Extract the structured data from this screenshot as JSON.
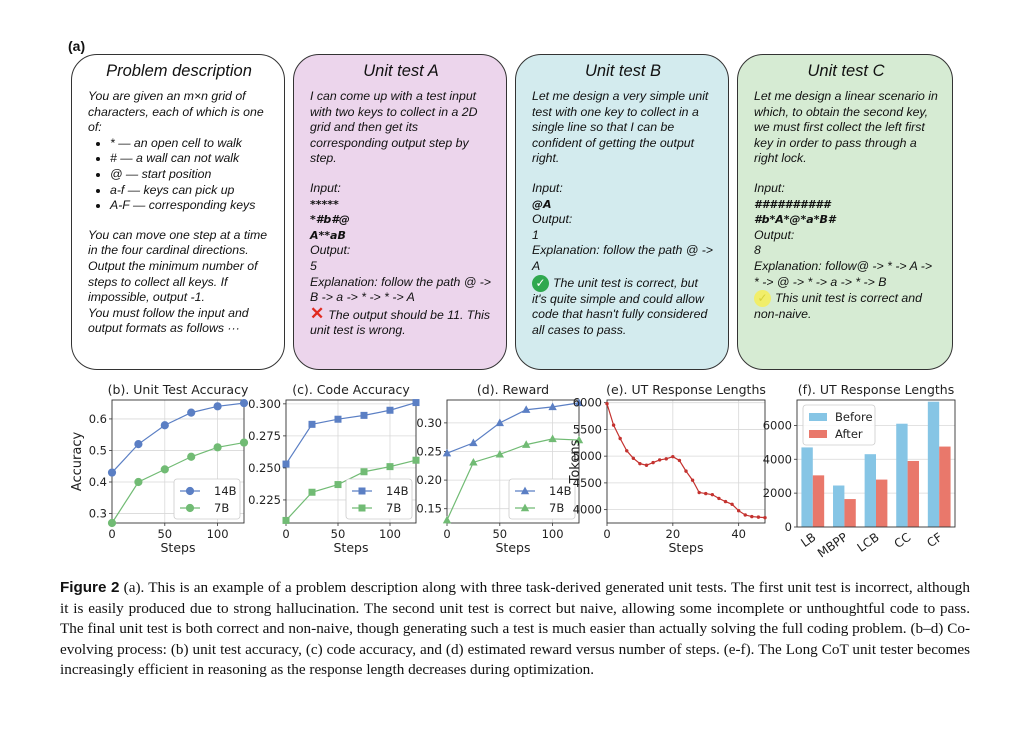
{
  "panel_label": "(a)",
  "boxes": {
    "problem": {
      "title": "Problem description",
      "intro": "You are given an m×n grid of characters, each of which is one of:",
      "items": [
        "* — an open cell to walk",
        "# — a wall can not walk",
        "@ — start position",
        "a-f — keys can pick up",
        "A-F — corresponding keys"
      ],
      "rules": "You can move one step at a time in the four cardinal directions. Output the minimum number of steps to collect all keys. If impossible, output -1.",
      "format": "You must follow the input and output formats as follows ···",
      "bg": "#ffffff"
    },
    "a": {
      "title": "Unit test A",
      "intro": "I can come up with a test input with two keys to collect in a 2D grid and then get its corresponding output step by step.",
      "input_label": "Input:",
      "input_lines": [
        "*****",
        "*#b#@",
        "A**aB"
      ],
      "output_label": "Output:",
      "output": "5",
      "explanation": "Explanation: follow the path @ -> B -> a -> * -> * -> A",
      "verdict": "The output should be 11. This unit test is wrong.",
      "bg": "#ecd5ec"
    },
    "b": {
      "title": "Unit test B",
      "intro": "Let me design a very simple unit test with one key to collect in a single line so that I can be confident of getting the output right.",
      "input_label": "Input:",
      "input_lines": [
        "@A"
      ],
      "output_label": "Output:",
      "output": "1",
      "explanation": "Explanation: follow the path @ -> A",
      "verdict": "The unit test is correct, but it's quite simple and could allow code that hasn't fully considered all cases to pass.",
      "bg": "#d3ebee"
    },
    "c": {
      "title": "Unit test C",
      "intro": "Let me design a linear scenario in which, to obtain the second key, we must first collect the left first key in order to pass through a right lock.",
      "input_label": "Input:",
      "input_lines": [
        "##########",
        "#b*A*@*a*B#"
      ],
      "output_label": "Output:",
      "output": "8",
      "explanation": "Explanation: follow@ -> * -> A -> * -> @ -> * -> a -> * -> B",
      "verdict": "This unit test is correct and non-naive.",
      "bg": "#d6ebd3"
    }
  },
  "chart_data": [
    {
      "type": "line",
      "title": "(b). Unit Test Accuracy",
      "xlabel": "Steps",
      "ylabel": "Accuracy",
      "xlim": [
        0,
        125
      ],
      "ylim": [
        0.27,
        0.66
      ],
      "xticks": [
        0,
        50,
        100
      ],
      "yticks": [
        0.3,
        0.4,
        0.5,
        0.6
      ],
      "ytick_labels": [
        "0.3",
        "0.4",
        "0.5",
        "0.6"
      ],
      "series": [
        {
          "name": "14B",
          "marker": "circle",
          "color": "#5b7fc4",
          "x": [
            0,
            25,
            50,
            75,
            100,
            125
          ],
          "y": [
            0.43,
            0.52,
            0.58,
            0.62,
            0.64,
            0.65
          ]
        },
        {
          "name": "7B",
          "marker": "circle",
          "color": "#71bb74",
          "x": [
            0,
            25,
            50,
            75,
            100,
            125
          ],
          "y": [
            0.27,
            0.4,
            0.44,
            0.48,
            0.51,
            0.525
          ]
        }
      ]
    },
    {
      "type": "line",
      "title": "(c). Code Accuracy",
      "xlabel": "Steps",
      "ylabel": "",
      "xlim": [
        0,
        125
      ],
      "ylim": [
        0.207,
        0.303
      ],
      "xticks": [
        0,
        50,
        100
      ],
      "yticks": [
        0.225,
        0.25,
        0.275,
        0.3
      ],
      "ytick_labels": [
        "0.225",
        "0.250",
        "0.275",
        "0.300"
      ],
      "series": [
        {
          "name": "14B",
          "marker": "square",
          "color": "#5b7fc4",
          "x": [
            0,
            25,
            50,
            75,
            100,
            125
          ],
          "y": [
            0.253,
            0.284,
            0.288,
            0.291,
            0.295,
            0.301
          ]
        },
        {
          "name": "7B",
          "marker": "square",
          "color": "#71bb74",
          "x": [
            0,
            25,
            50,
            75,
            100,
            125
          ],
          "y": [
            0.209,
            0.231,
            0.237,
            0.247,
            0.251,
            0.256
          ]
        }
      ]
    },
    {
      "type": "line",
      "title": "(d). Reward",
      "xlabel": "Steps",
      "ylabel": "",
      "xlim": [
        0,
        125
      ],
      "ylim": [
        0.125,
        0.34
      ],
      "xticks": [
        0,
        50,
        100
      ],
      "yticks": [
        0.15,
        0.2,
        0.25,
        0.3
      ],
      "ytick_labels": [
        "0.15",
        "0.20",
        "0.25",
        "0.30"
      ],
      "series": [
        {
          "name": "14B",
          "marker": "triangle",
          "color": "#5b7fc4",
          "x": [
            0,
            25,
            50,
            75,
            100,
            125
          ],
          "y": [
            0.247,
            0.265,
            0.3,
            0.323,
            0.328,
            0.335
          ]
        },
        {
          "name": "7B",
          "marker": "triangle",
          "color": "#71bb74",
          "x": [
            0,
            25,
            50,
            75,
            100,
            125
          ],
          "y": [
            0.13,
            0.231,
            0.245,
            0.262,
            0.272,
            0.27
          ]
        }
      ]
    },
    {
      "type": "line",
      "title": "(e). UT Response Lengths",
      "xlabel": "Steps",
      "ylabel": "Tokens",
      "xlim": [
        0,
        48
      ],
      "ylim": [
        3750,
        6050
      ],
      "xticks": [
        0,
        20,
        40
      ],
      "yticks": [
        4000,
        4500,
        5000,
        5500,
        6000
      ],
      "ytick_labels": [
        "4000",
        "4500",
        "5000",
        "5500",
        "6000"
      ],
      "series": [
        {
          "name": "",
          "marker": "dot",
          "color": "#c4322f",
          "x": [
            0,
            2,
            4,
            6,
            8,
            10,
            12,
            14,
            16,
            18,
            20,
            22,
            24,
            26,
            28,
            30,
            32,
            34,
            36,
            38,
            40,
            42,
            44,
            46,
            48
          ],
          "y": [
            5980,
            5580,
            5330,
            5100,
            4960,
            4860,
            4830,
            4880,
            4930,
            4950,
            4990,
            4920,
            4720,
            4550,
            4320,
            4300,
            4280,
            4210,
            4150,
            4100,
            3980,
            3900,
            3870,
            3860,
            3850
          ]
        }
      ]
    },
    {
      "type": "bar",
      "title": "(f). UT Response Lengths",
      "xlabel": "",
      "ylabel": "",
      "categories": [
        "LB",
        "MBPP",
        "LCB",
        "CC",
        "CF"
      ],
      "ylim": [
        0,
        7500
      ],
      "yticks": [
        0,
        2000,
        4000,
        6000
      ],
      "ytick_labels": [
        "0",
        "2000",
        "4000",
        "6000"
      ],
      "series": [
        {
          "name": "Before",
          "color": "#86c5e5",
          "values": [
            4700,
            2450,
            4300,
            6100,
            7400
          ]
        },
        {
          "name": "After",
          "color": "#e9786b",
          "values": [
            3050,
            1650,
            2800,
            3900,
            4750
          ]
        }
      ]
    }
  ],
  "caption": {
    "fig_label": "Figure 2",
    "text": " (a). This is an example of a problem description along with three task-derived generated unit tests. The first unit test is incorrect, although it is easily produced due to strong hallucination. The second unit test is correct but naive, allowing some incomplete or unthoughtful code to pass. The final unit test is both correct and non-naive, though generating such a test is much easier than actually solving the full coding problem. (b–d) Co-evolving process: (b) unit test accuracy, (c) code accuracy, and (d) estimated reward versus number of steps. (e-f). The Long CoT unit tester becomes increasingly efficient in reasoning as the response length decreases during optimization."
  },
  "colors": {
    "cross": "#e02b20",
    "check": "#2fa84f",
    "check_yellow": "#f1ee6a"
  }
}
